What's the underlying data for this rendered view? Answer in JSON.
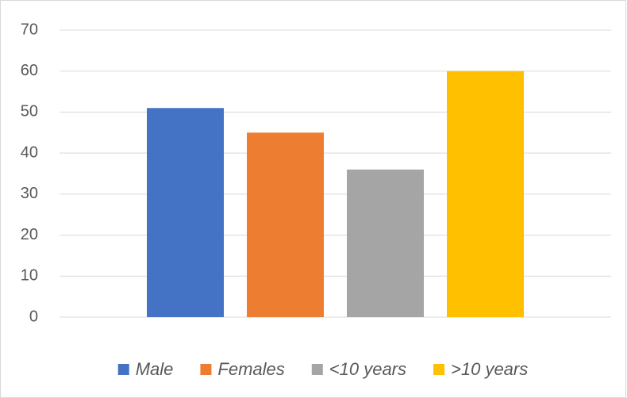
{
  "chart_data": {
    "type": "bar",
    "categories": [
      null
    ],
    "series": [
      {
        "name": "Male",
        "color": "#4472c4",
        "values": [
          51
        ]
      },
      {
        "name": "Females",
        "color": "#ed7d31",
        "values": [
          45
        ]
      },
      {
        "name": "<10 years",
        "color": "#a5a5a5",
        "values": [
          36
        ]
      },
      {
        "name": ">10 years",
        "color": "#ffc000",
        "values": [
          60
        ]
      }
    ],
    "ylim": [
      0,
      70
    ],
    "yticks": [
      0,
      10,
      20,
      30,
      40,
      50,
      60,
      70
    ],
    "grid": true,
    "legend": "bottom"
  }
}
